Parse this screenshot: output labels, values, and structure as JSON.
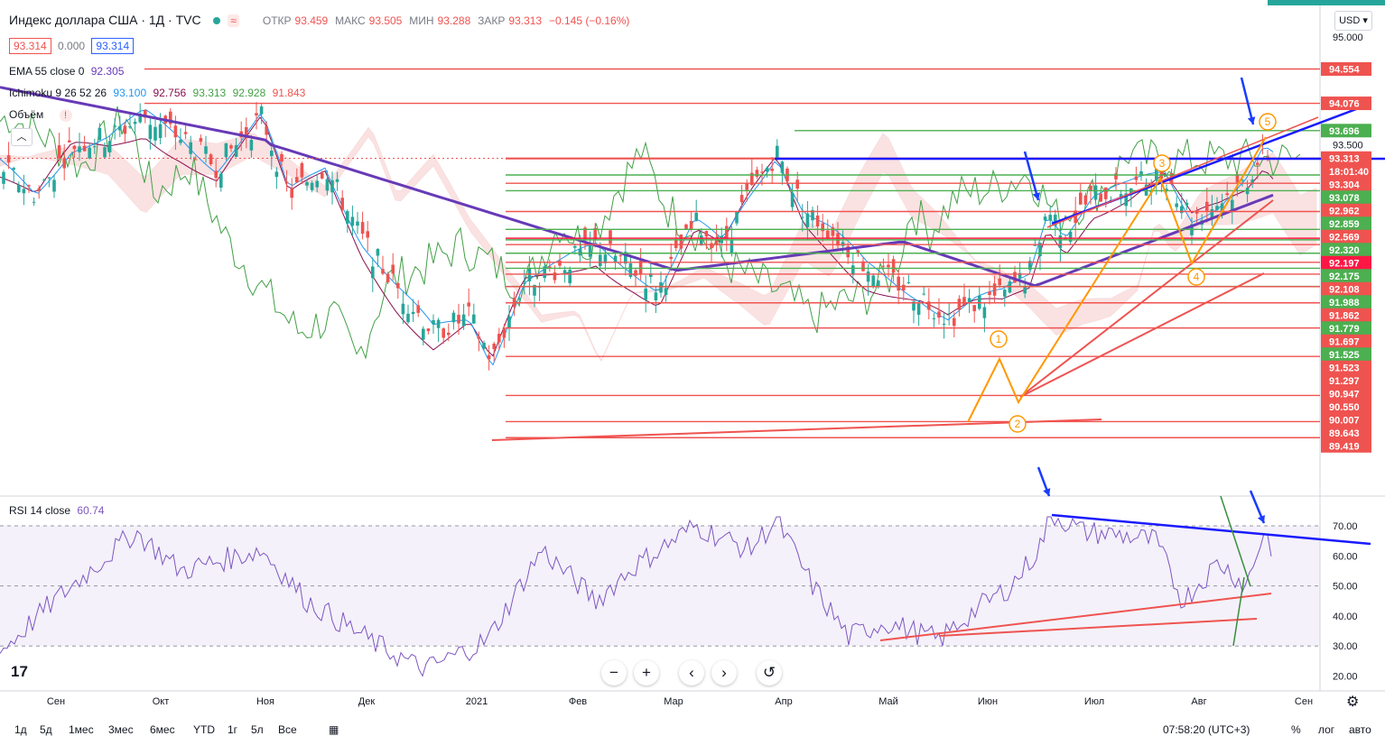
{
  "header": {
    "symbol": "Индекс доллара США · 1Д · TVC",
    "ohlc": [
      {
        "label": "ОТКР",
        "value": "93.459"
      },
      {
        "label": "МАКС",
        "value": "93.505"
      },
      {
        "label": "МИН",
        "value": "93.288"
      },
      {
        "label": "ЗАКР",
        "value": "93.313"
      }
    ],
    "change": "−0.145 (−0.16%)",
    "wave_icon": "wave-icon",
    "bid": "93.314",
    "spread": "0.000",
    "ask": "93.314",
    "currency": "USD ▾"
  },
  "indicators": {
    "ema": {
      "label": "EMA 55 close 0",
      "value": "92.305"
    },
    "ichimoku": {
      "label": "Ichimoku 9 26 52 26",
      "values": [
        "93.100",
        "92.756",
        "93.313",
        "92.928",
        "91.843"
      ]
    },
    "volume": {
      "label": "Объём",
      "warning": "!"
    },
    "rsi": {
      "label": "RSI 14 close",
      "value": "60.74"
    }
  },
  "colors": {
    "up": "#26a69a",
    "down": "#ef5350",
    "ema": "#673ab7",
    "tenkan": "#2196f3",
    "kijun": "#880e4f",
    "lagging": "#43a047",
    "trend_blue": "#1a1aff",
    "level_red": "#ef5350",
    "level_green": "#4caf50",
    "wave_orange": "#ff9800",
    "rsi": "#7e57c2"
  },
  "chart_data": {
    "type": "line",
    "price_axis": {
      "ticks": [
        "95.000",
        "93.500"
      ],
      "labels": [
        {
          "text": "94.554",
          "value": 94.554,
          "color": "#ef5350"
        },
        {
          "text": "94.076",
          "value": 94.076,
          "color": "#ef5350"
        },
        {
          "text": "93.696",
          "value": 93.696,
          "color": "#4caf50"
        },
        {
          "text": "93.313",
          "value": 93.313,
          "color": "#ef5350"
        },
        {
          "text": "18:01:40",
          "value": 93.21,
          "color": "#ef5350"
        },
        {
          "text": "93.304",
          "value": 93.304,
          "color": "#ef5350"
        },
        {
          "text": "93.078",
          "value": 93.078,
          "color": "#4caf50"
        },
        {
          "text": "92.962",
          "value": 92.962,
          "color": "#ef5350"
        },
        {
          "text": "92.859",
          "value": 92.859,
          "color": "#4caf50"
        },
        {
          "text": "92.569",
          "value": 92.569,
          "color": "#ef5350"
        },
        {
          "text": "92.320",
          "value": 92.32,
          "color": "#4caf50"
        },
        {
          "text": "92.197",
          "value": 92.197,
          "color": "#ff1744"
        },
        {
          "text": "92.175",
          "value": 92.175,
          "color": "#4caf50"
        },
        {
          "text": "92.108",
          "value": 92.108,
          "color": "#ef5350"
        },
        {
          "text": "91.988",
          "value": 91.988,
          "color": "#4caf50"
        },
        {
          "text": "91.862",
          "value": 91.862,
          "color": "#ef5350"
        },
        {
          "text": "91.779",
          "value": 91.779,
          "color": "#4caf50"
        },
        {
          "text": "91.697",
          "value": 91.697,
          "color": "#ef5350"
        },
        {
          "text": "91.525",
          "value": 91.525,
          "color": "#4caf50"
        },
        {
          "text": "91.523",
          "value": 91.523,
          "color": "#ef5350"
        },
        {
          "text": "91.297",
          "value": 91.297,
          "color": "#ef5350"
        },
        {
          "text": "90.947",
          "value": 90.947,
          "color": "#ef5350"
        },
        {
          "text": "90.550",
          "value": 90.55,
          "color": "#ef5350"
        },
        {
          "text": "90.007",
          "value": 90.007,
          "color": "#ef5350"
        },
        {
          "text": "89.643",
          "value": 89.643,
          "color": "#ef5350"
        },
        {
          "text": "89.419",
          "value": 89.419,
          "color": "#ef5350"
        }
      ]
    },
    "rsi_axis": {
      "ticks": [
        "70.00",
        "60.00",
        "50.00",
        "40.00",
        "30.00",
        "20.00"
      ],
      "upper": 70,
      "lower": 30
    },
    "x_labels": [
      "Сен",
      "Окт",
      "Ноя",
      "Дек",
      "2021",
      "Фев",
      "Мар",
      "Апр",
      "Май",
      "Июн",
      "Июл",
      "Авг",
      "Сен"
    ],
    "wave_labels": [
      "1",
      "2",
      "3",
      "4",
      "5"
    ]
  },
  "bottom": {
    "ranges": [
      "1д",
      "5д",
      "1мес",
      "3мес",
      "6мес",
      "YTD",
      "1г",
      "5л",
      "Все"
    ],
    "time": "07:58:20 (UTC+3)",
    "right": [
      "%",
      "лог",
      "авто"
    ]
  },
  "nav": {
    "zoom_out": "−",
    "zoom_in": "+",
    "back": "‹",
    "fwd": "›",
    "reset": "↺"
  },
  "icons": {
    "logo": "tradingview-logo",
    "settings": "gear-icon",
    "calendar": "calendar-icon"
  }
}
